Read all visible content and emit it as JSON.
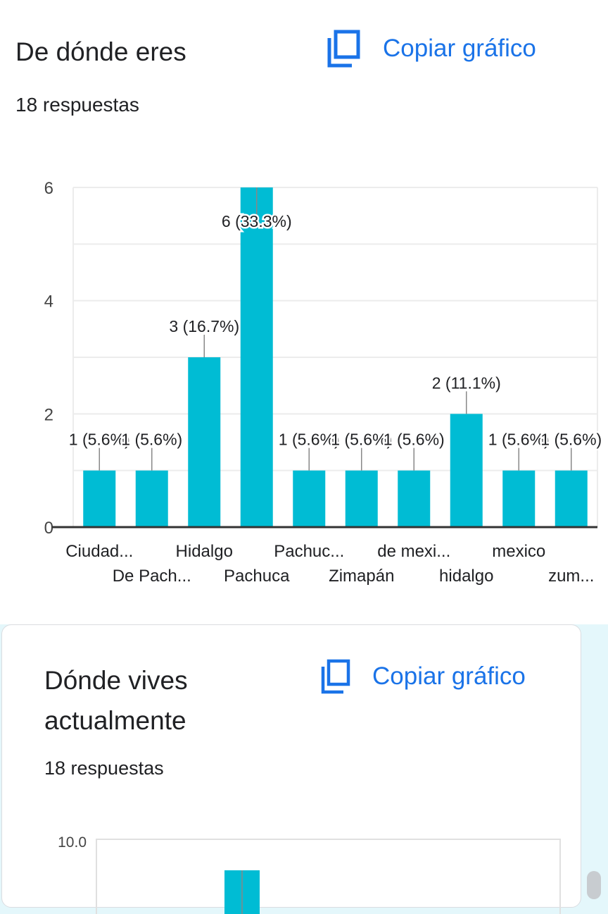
{
  "card1": {
    "title": "De dónde eres",
    "responses": "18 respuestas",
    "copy_label": "Copiar gráfico"
  },
  "card2": {
    "title_line1": "Dónde vives",
    "title_line2": "actualmente",
    "responses": "18 respuestas",
    "copy_label": "Copiar gráfico",
    "y_top_tick": "10.0"
  },
  "icons": {
    "copy": "copy-icon"
  },
  "colors": {
    "accent": "#1a73e8",
    "bar": "#00bcd4",
    "text": "#202124",
    "page_bg": "#e4f7fb"
  },
  "chart_data": [
    {
      "type": "bar",
      "title": "De dónde eres",
      "categories": [
        "Ciudad...",
        "De Pach...",
        "Hidalgo",
        "Pachuca",
        "Pachuc...",
        "Zimapán",
        "de mexi...",
        "hidalgo",
        "mexico",
        "zum..."
      ],
      "values": [
        1,
        1,
        3,
        6,
        1,
        1,
        1,
        2,
        1,
        1
      ],
      "labels": [
        "1 (5.6%)",
        "1 (5.6%)",
        "3 (16.7%)",
        "6 (33.3%)",
        "1 (5.6%)",
        "1 (5.6%)",
        "1 (5.6%)",
        "2 (11.1%)",
        "1 (5.6%)",
        "1 (5.6%)"
      ],
      "ylim": [
        0,
        6
      ],
      "yticks": [
        0,
        2,
        4,
        6
      ],
      "xlabel": "",
      "ylabel": "",
      "grid": true
    },
    {
      "type": "bar",
      "title": "Dónde vives actualmente",
      "categories": [],
      "values": [],
      "yticks": [
        10
      ]
    }
  ]
}
